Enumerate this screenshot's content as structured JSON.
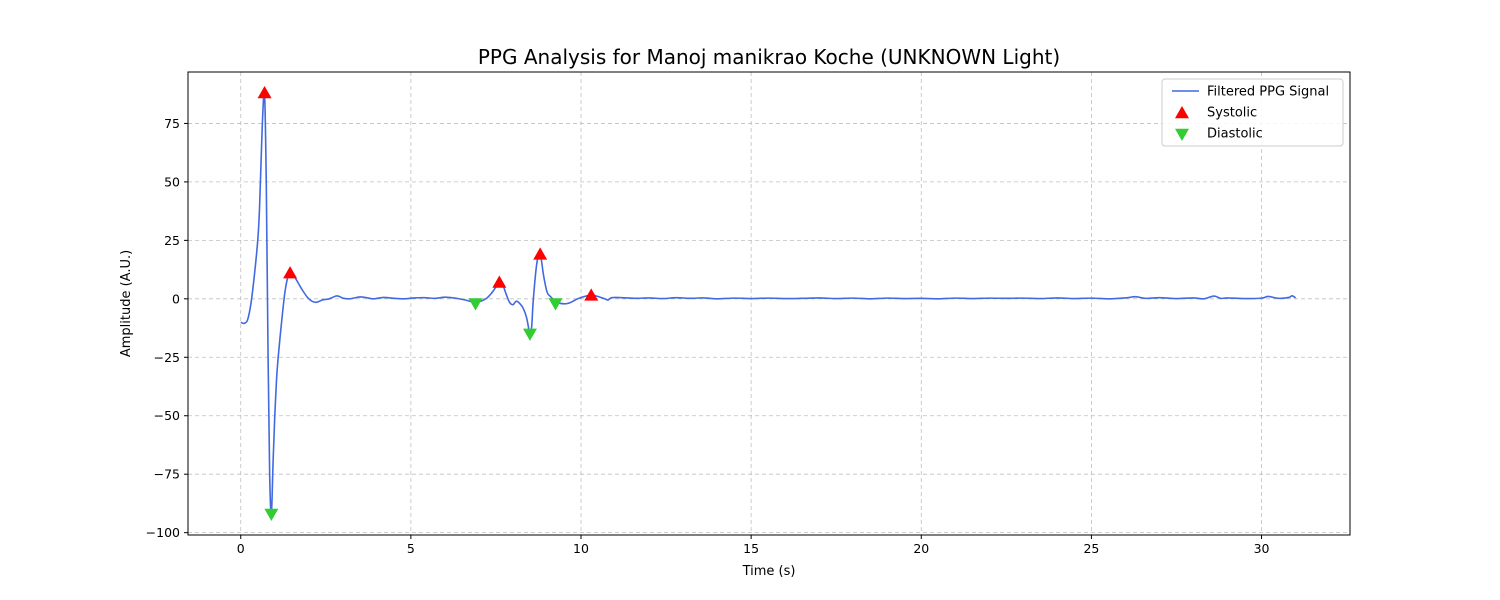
{
  "chart_data": {
    "type": "line",
    "title": "PPG Analysis for Manoj manikrao Koche (UNKNOWN Light)",
    "xlabel": "Time (s)",
    "ylabel": "Amplitude (A.U.)",
    "xlim": [
      -1.55,
      32.6
    ],
    "ylim": [
      -101,
      97
    ],
    "xticks": [
      0,
      5,
      10,
      15,
      20,
      25,
      30
    ],
    "yticks": [
      -100,
      -75,
      -50,
      -25,
      0,
      25,
      50,
      75
    ],
    "xtick_labels": [
      "0",
      "5",
      "10",
      "15",
      "20",
      "25",
      "30"
    ],
    "ytick_labels": [
      "−100",
      "−75",
      "−50",
      "−25",
      "0",
      "25",
      "50",
      "75"
    ],
    "grid": true,
    "legend_position": "top-right",
    "colors": {
      "signal": "#4169e1",
      "systolic": "#ff0000",
      "diastolic": "#32cd32"
    },
    "series": [
      {
        "name": "Filtered PPG Signal",
        "kind": "line",
        "x": [
          0,
          0.1,
          0.2,
          0.3,
          0.4,
          0.5,
          0.55,
          0.6,
          0.65,
          0.7,
          0.75,
          0.8,
          0.85,
          0.9,
          0.95,
          1.0,
          1.05,
          1.1,
          1.2,
          1.3,
          1.4,
          1.5,
          1.6,
          1.8,
          2.0,
          2.2,
          2.4,
          2.6,
          2.8,
          2.9,
          3.0,
          3.2,
          3.5,
          3.7,
          3.9,
          4.2,
          4.5,
          4.8,
          5.1,
          5.4,
          5.7,
          6.0,
          6.3,
          6.6,
          6.9,
          7.2,
          7.4,
          7.6,
          7.7,
          7.8,
          7.9,
          8.0,
          8.1,
          8.2,
          8.3,
          8.4,
          8.5,
          8.55,
          8.6,
          8.7,
          8.8,
          8.9,
          9.0,
          9.1,
          9.3,
          9.6,
          9.9,
          10.1,
          10.3,
          10.5,
          10.7,
          10.8,
          10.9,
          11.2,
          11.6,
          12.0,
          12.4,
          12.8,
          13.2,
          13.6,
          14.0,
          14.5,
          15.0,
          15.5,
          16.0,
          16.5,
          17.0,
          17.5,
          18.0,
          18.5,
          19.0,
          19.5,
          20.0,
          20.5,
          21.0,
          21.5,
          22.0,
          22.5,
          23.0,
          23.5,
          24.0,
          24.5,
          25.0,
          25.5,
          26.0,
          26.3,
          26.6,
          27.0,
          27.5,
          28.0,
          28.3,
          28.6,
          28.8,
          29.0,
          29.5,
          30.0,
          30.2,
          30.5,
          30.8,
          30.9,
          31.0
        ],
        "y": [
          -10,
          -10.5,
          -9,
          -2,
          10,
          25,
          38,
          60,
          80,
          88,
          50,
          -20,
          -75,
          -92,
          -70,
          -50,
          -35,
          -25,
          -10,
          3,
          10,
          11,
          9,
          4,
          0,
          -1.5,
          -0.5,
          0,
          1.2,
          1.0,
          0.3,
          0,
          0.8,
          0.5,
          0,
          0.6,
          0.2,
          0,
          0.4,
          0.5,
          0.2,
          0.7,
          0.3,
          -0.5,
          -1.5,
          0,
          3,
          7,
          6,
          2,
          -1.5,
          -2.5,
          -1,
          -2,
          -4,
          -8,
          -15,
          -12,
          0,
          15,
          19,
          10,
          3,
          1,
          -1.5,
          -2,
          0,
          1,
          1.5,
          1,
          0,
          -0.5,
          0.5,
          0.5,
          0.2,
          0.4,
          0.1,
          0.5,
          0.2,
          0.4,
          0,
          0.3,
          0.1,
          0.3,
          0.1,
          0.2,
          0.4,
          0.1,
          0.3,
          0,
          0.3,
          0.1,
          0.2,
          0,
          0.3,
          0.1,
          0.3,
          0.2,
          0.3,
          0.1,
          0.4,
          0.1,
          0.3,
          0,
          0.4,
          0.9,
          0.2,
          0.5,
          0.1,
          0.4,
          0,
          1.2,
          0.2,
          0.4,
          0.1,
          0.3,
          1.0,
          0.2,
          0.6,
          1.3,
          0.4
        ]
      },
      {
        "name": "Systolic",
        "kind": "marker-up",
        "x": [
          0.7,
          1.45,
          7.6,
          8.8,
          10.3
        ],
        "y": [
          88,
          11,
          7,
          19,
          1.5
        ]
      },
      {
        "name": "Diastolic",
        "kind": "marker-down",
        "x": [
          0.9,
          6.9,
          8.5,
          9.25
        ],
        "y": [
          -92,
          -2,
          -15,
          -2
        ]
      }
    ]
  }
}
